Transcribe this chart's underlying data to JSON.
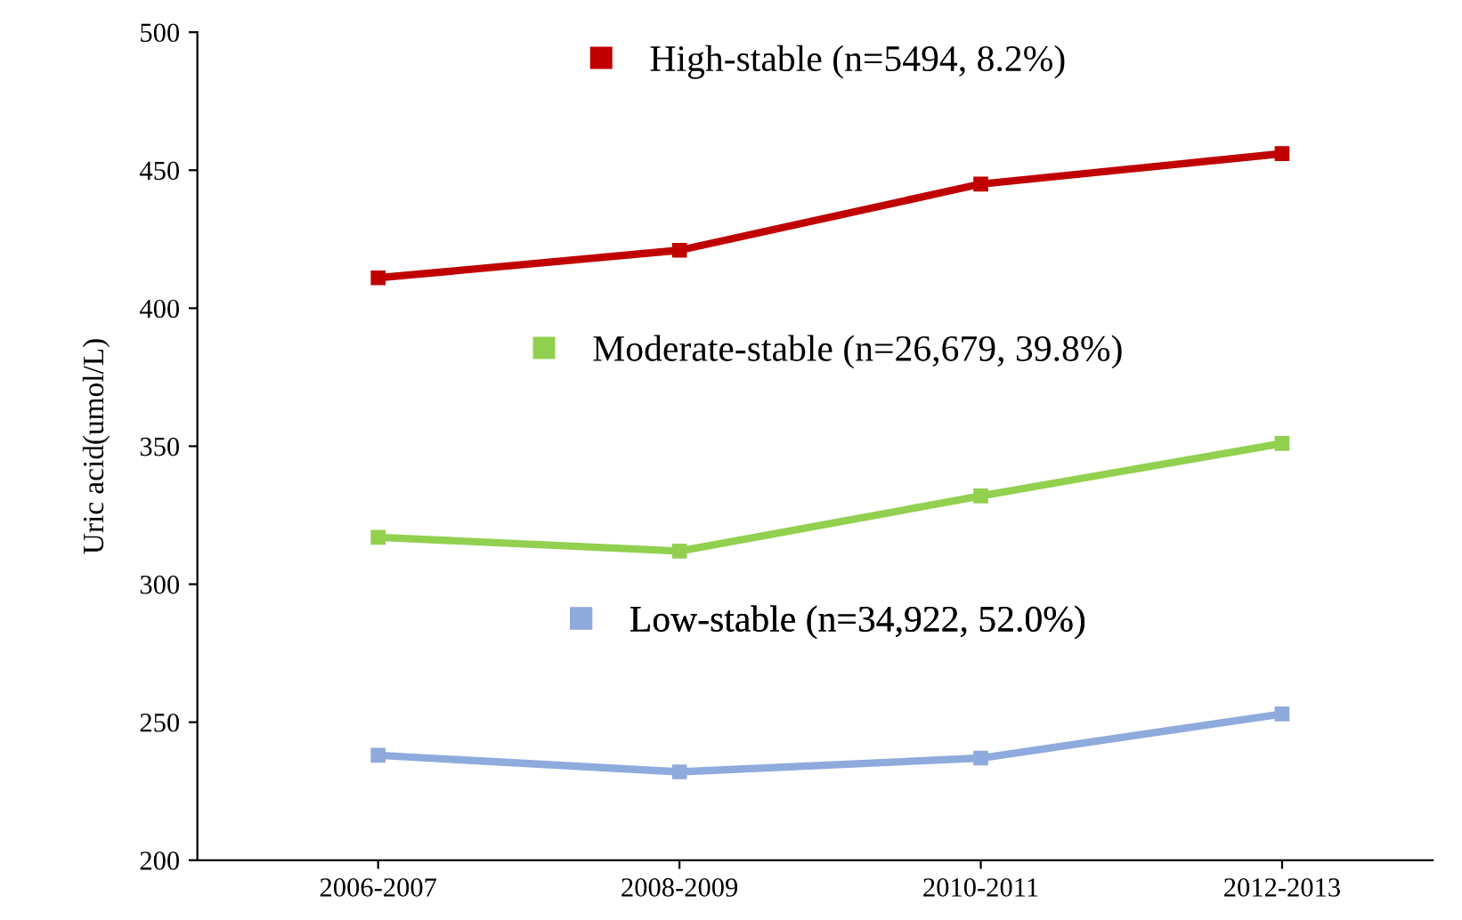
{
  "chart_data": {
    "type": "line",
    "ylabel": "Uric acid(umol/L)",
    "categories": [
      "2006-2007",
      "2008-2009",
      "2010-2011",
      "2012-2013"
    ],
    "series": [
      {
        "name": "High-stable (n=5494, 8.2%)",
        "color": "#c00000",
        "values": [
          411,
          421,
          445,
          456
        ]
      },
      {
        "name": "Moderate-stable (n=26,679, 39.8%)",
        "color": "#92d050",
        "values": [
          317,
          312,
          332,
          351
        ]
      },
      {
        "name": "Low-stable (n=34,922, 52.0%)",
        "color": "#8faadc",
        "values": [
          238,
          232,
          237,
          253
        ]
      }
    ],
    "ylim": [
      200,
      500
    ],
    "yticks": [
      200,
      250,
      300,
      350,
      400,
      450,
      500
    ],
    "grid": false,
    "legend": "top",
    "marker": "square",
    "line_style": "solid"
  }
}
